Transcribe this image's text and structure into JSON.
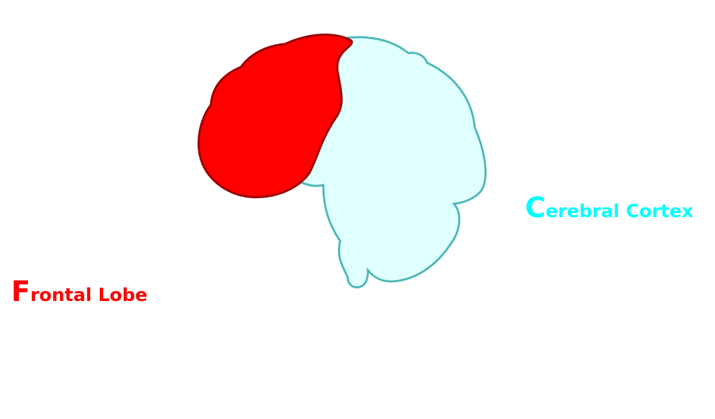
{
  "labels": {
    "frontal": {
      "initial": "F",
      "rest": "rontal Lobe"
    },
    "cortex": {
      "initial": "C",
      "rest": "erebral Cortex"
    }
  },
  "colors": {
    "frontal_fill": "#ff0000",
    "frontal_stroke": "#990000",
    "cortex_fill": "#e0ffff",
    "cortex_stroke": "#4db8b8",
    "frontal_text": "#ff0000",
    "cortex_text": "#00ffff"
  }
}
